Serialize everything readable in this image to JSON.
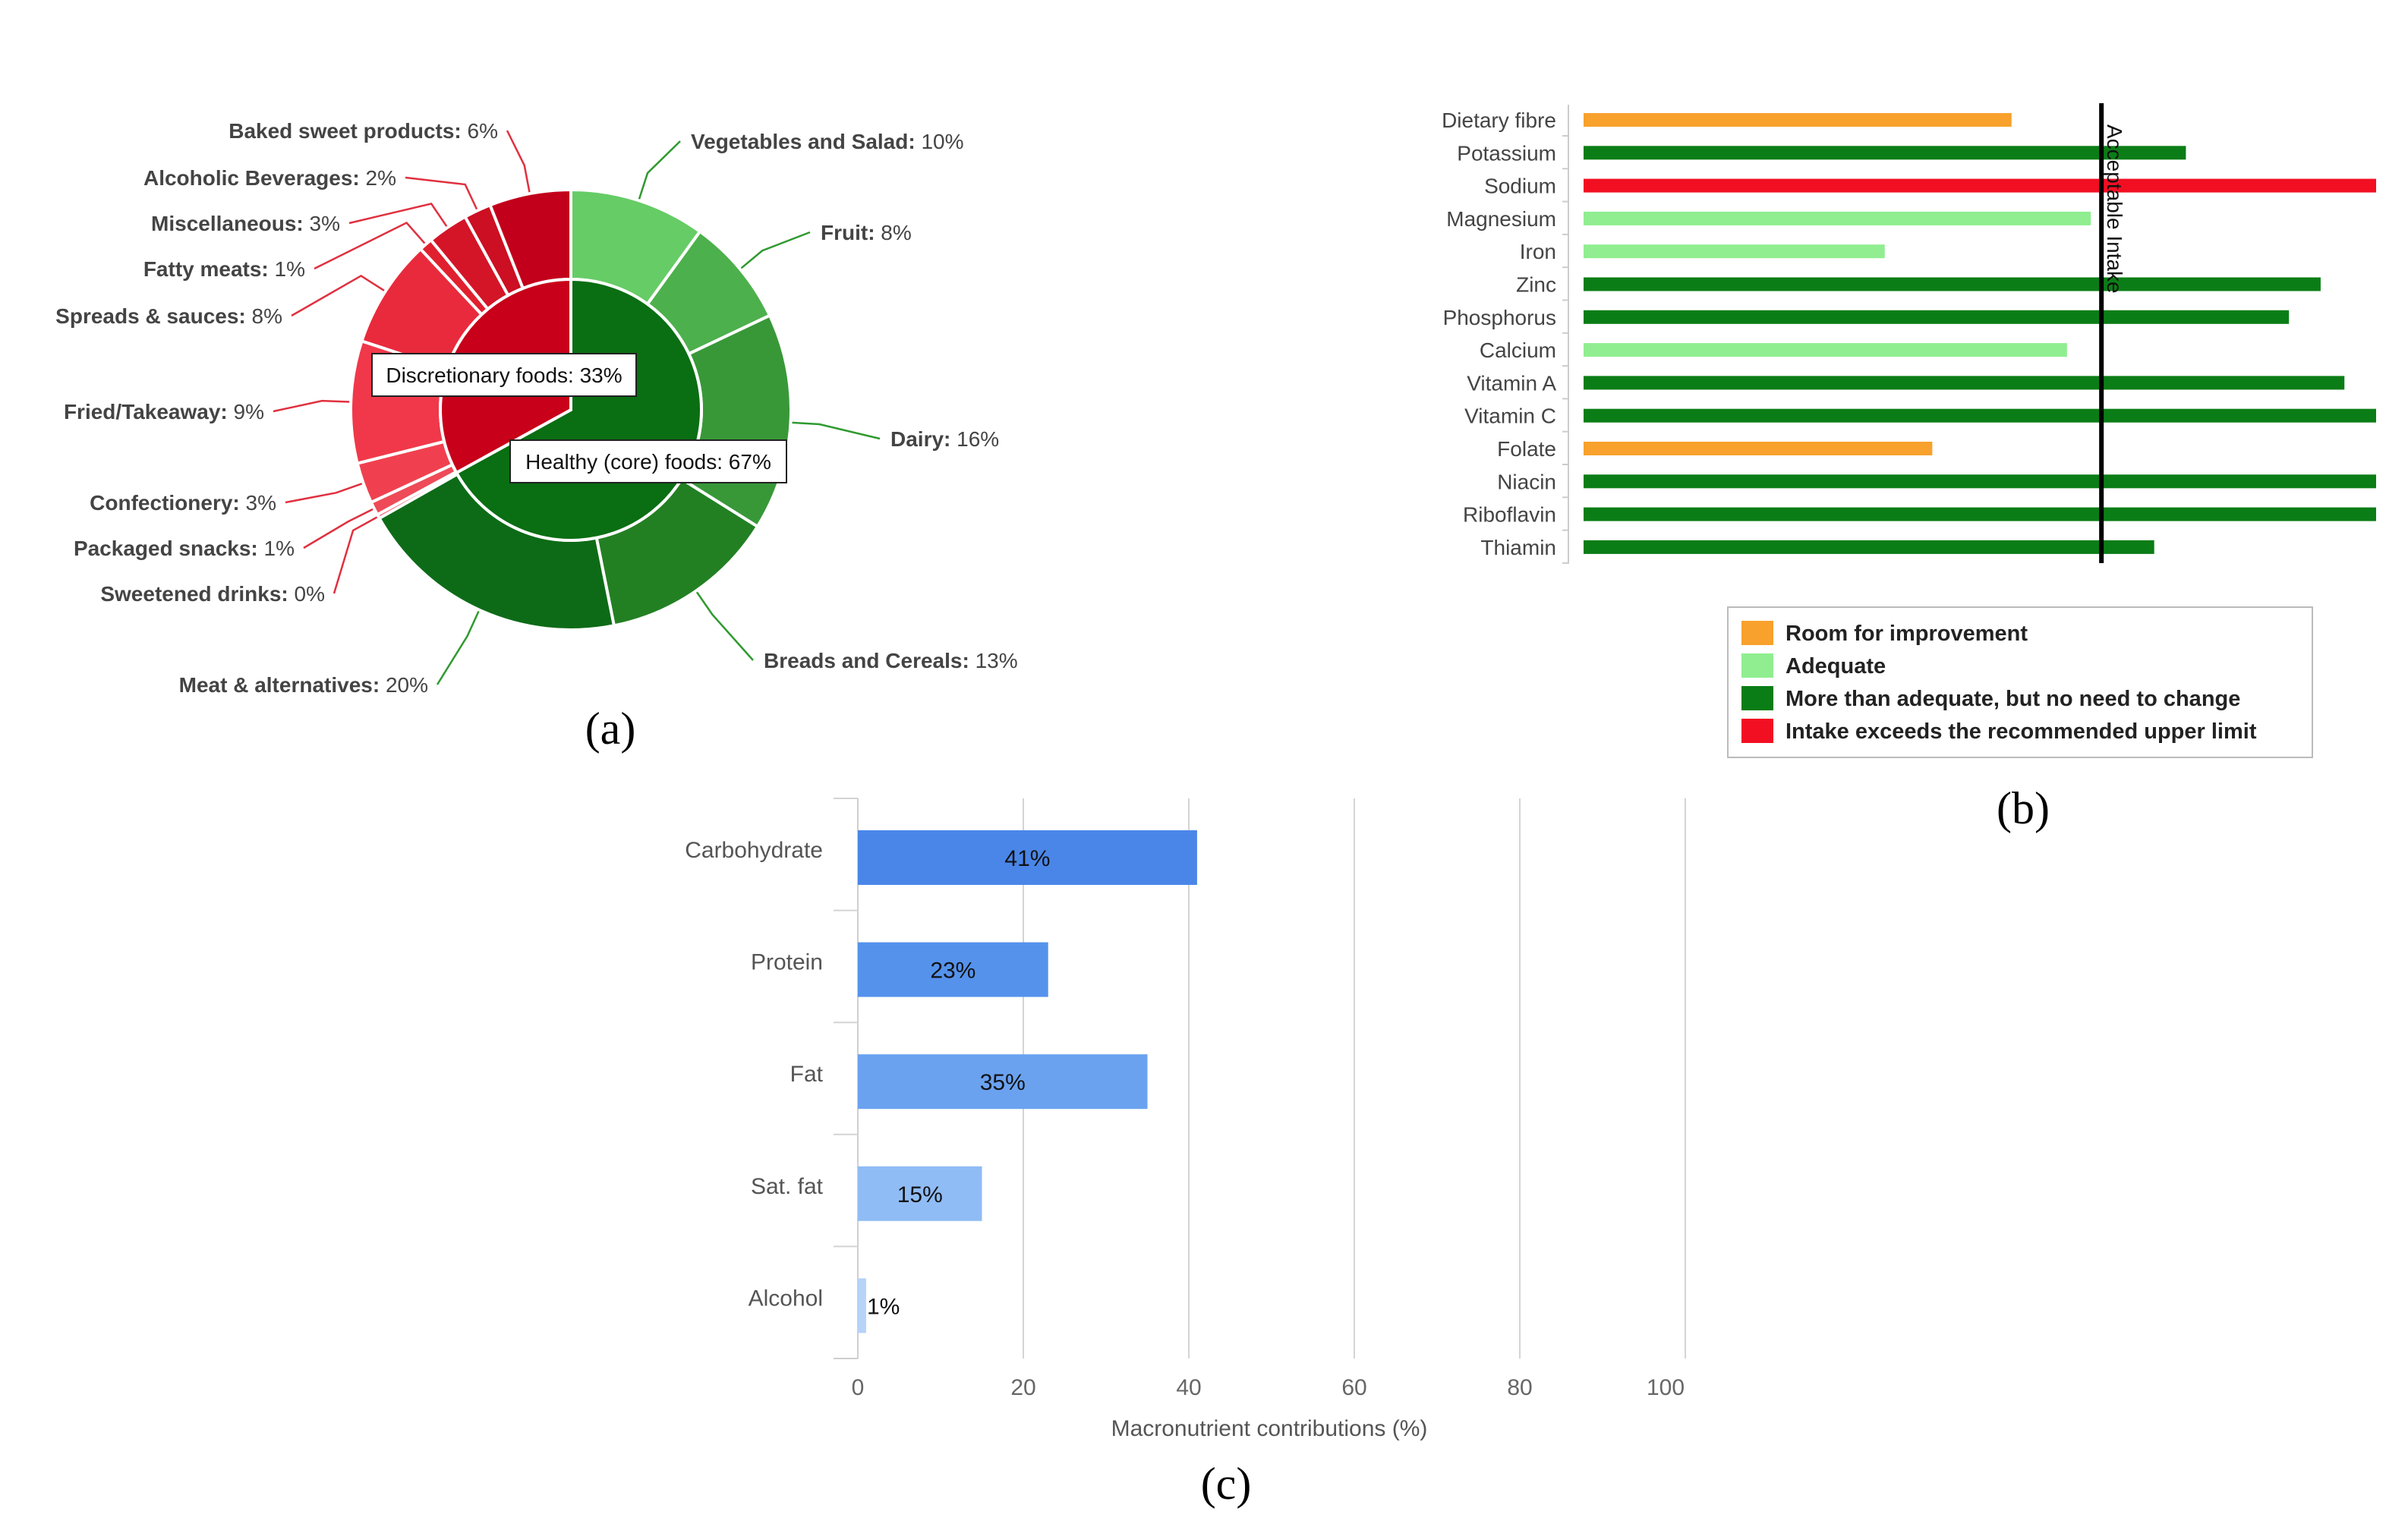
{
  "chart_data": [
    {
      "id": "a",
      "type": "pie",
      "panel_label": "(a)",
      "inner": [
        {
          "name": "Healthy (core) foods",
          "value": 67,
          "label": "Healthy (core) foods: 67%",
          "color": "#0a6e13"
        },
        {
          "name": "Discretionary foods",
          "value": 33,
          "label": "Discretionary foods: 33%",
          "color": "#c8001a"
        }
      ],
      "outer": [
        {
          "name": "Vegetables and Salad",
          "value": 10,
          "pct": "10%",
          "color": "#66cc66"
        },
        {
          "name": "Fruit",
          "value": 8,
          "pct": "8%",
          "color": "#4cb04c"
        },
        {
          "name": "Dairy",
          "value": 16,
          "pct": "16%",
          "color": "#389838"
        },
        {
          "name": "Breads and Cereals",
          "value": 13,
          "pct": "13%",
          "color": "#228022"
        },
        {
          "name": "Meat & alternatives",
          "value": 20,
          "pct": "20%",
          "color": "#0d6b17"
        },
        {
          "name": "Sweetened drinks",
          "value": 0.3,
          "pct": "0%",
          "color": "#f06470"
        },
        {
          "name": "Packaged snacks",
          "value": 1,
          "pct": "1%",
          "color": "#ee4a58"
        },
        {
          "name": "Confectionery",
          "value": 3,
          "pct": "3%",
          "color": "#f04050"
        },
        {
          "name": "Fried/Takeaway",
          "value": 9,
          "pct": "9%",
          "color": "#f0384a"
        },
        {
          "name": "Spreads & sauces",
          "value": 8,
          "pct": "8%",
          "color": "#e92a3c"
        },
        {
          "name": "Fatty meats",
          "value": 1,
          "pct": "1%",
          "color": "#e0202f"
        },
        {
          "name": "Miscellaneous",
          "value": 3,
          "pct": "3%",
          "color": "#d41528"
        },
        {
          "name": "Alcoholic Beverages",
          "value": 2,
          "pct": "2%",
          "color": "#cc0f22"
        },
        {
          "name": "Baked sweet products",
          "value": 6,
          "pct": "6%",
          "color": "#c2001b"
        }
      ]
    },
    {
      "id": "b",
      "type": "bar",
      "orientation": "horizontal",
      "panel_label": "(b)",
      "categories": [
        "Dietary fibre",
        "Potassium",
        "Sodium",
        "Magnesium",
        "Iron",
        "Zinc",
        "Phosphorus",
        "Calcium",
        "Vitamin A",
        "Vitamin C",
        "Folate",
        "Niacin",
        "Riboflavin",
        "Thiamin"
      ],
      "values": [
        54,
        76,
        100,
        64,
        38,
        93,
        89,
        61,
        96,
        100,
        44,
        100,
        100,
        72
      ],
      "status": [
        "improve",
        "more",
        "exceeds",
        "adequate",
        "adequate",
        "more",
        "more",
        "adequate",
        "more",
        "more",
        "improve",
        "more",
        "more",
        "more"
      ],
      "xlim": [
        0,
        100
      ],
      "reference_line": {
        "value": 64,
        "label": "Acceptable Intake"
      },
      "legend": [
        {
          "key": "improve",
          "label": "Room for improvement",
          "color": "#f8a12c"
        },
        {
          "key": "adequate",
          "label": "Adequate",
          "color": "#90ee90"
        },
        {
          "key": "more",
          "label": "More than adequate, but no need to change",
          "color": "#0b7d16"
        },
        {
          "key": "exceeds",
          "label": "Intake exceeds the recommended upper limit",
          "color": "#f20f22"
        }
      ]
    },
    {
      "id": "c",
      "type": "bar",
      "orientation": "horizontal",
      "panel_label": "(c)",
      "categories": [
        "Carbohydrate",
        "Protein",
        "Fat",
        "Sat. fat",
        "Alcohol"
      ],
      "values": [
        41,
        23,
        35,
        15,
        1
      ],
      "value_labels": [
        "41%",
        "23%",
        "35%",
        "15%",
        "1%"
      ],
      "colors": [
        "#4a86e8",
        "#5592ec",
        "#6aa2f0",
        "#90bcf5",
        "#b6d3f8"
      ],
      "xlim": [
        0,
        100
      ],
      "xticks": [
        0,
        20,
        40,
        60,
        80,
        100
      ],
      "xlabel": "Macronutrient contributions (%)"
    }
  ]
}
